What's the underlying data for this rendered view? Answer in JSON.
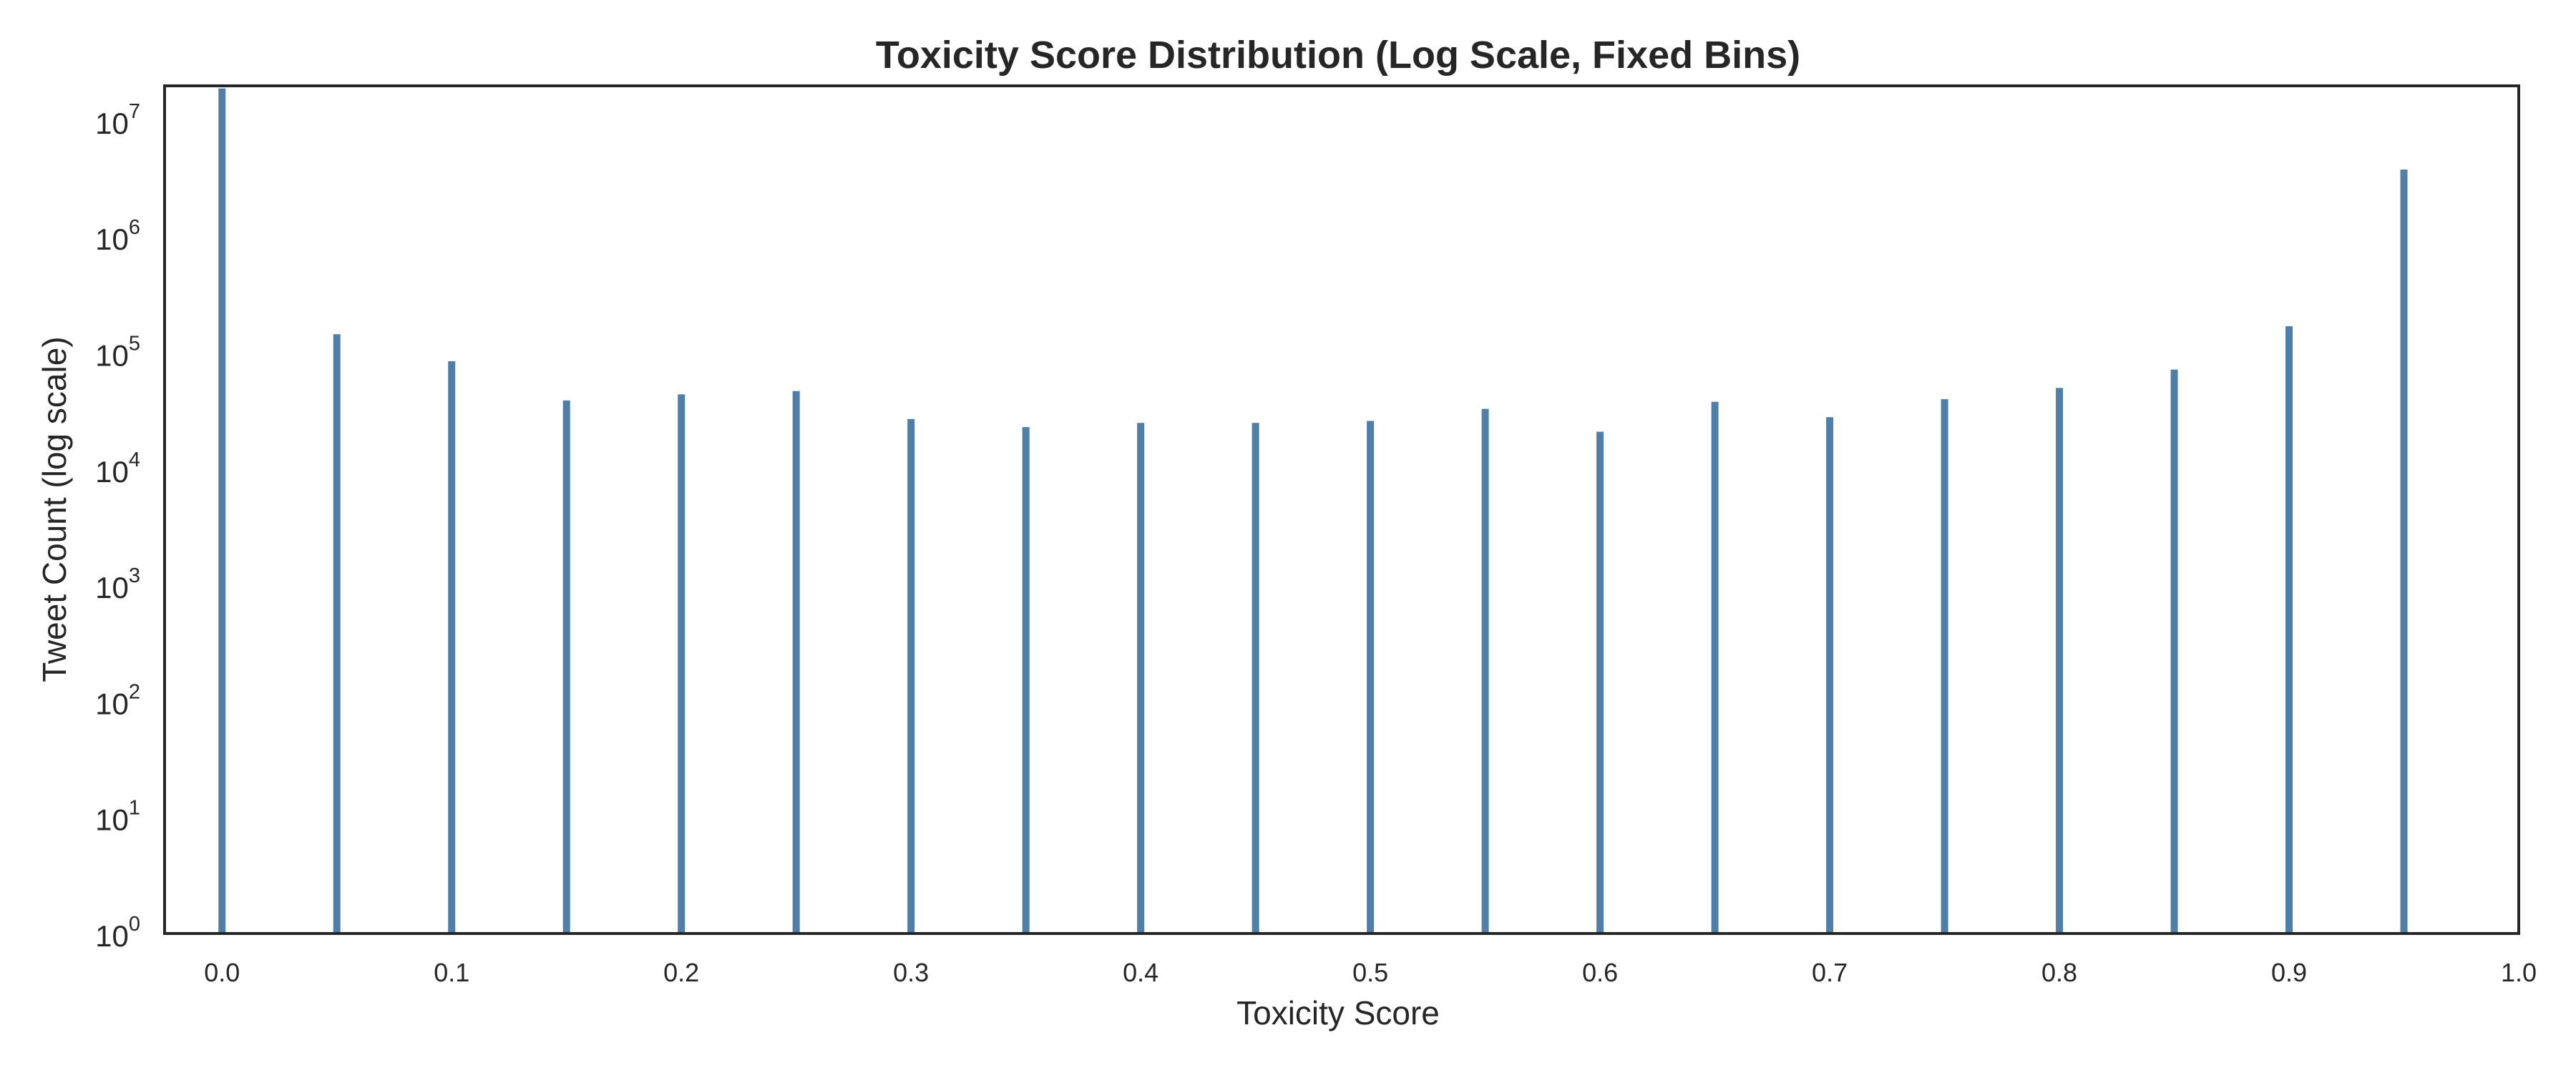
{
  "chart_data": {
    "type": "bar",
    "title": "Toxicity Score Distribution (Log Scale, Fixed Bins)",
    "xlabel": "Toxicity Score",
    "ylabel": "Tweet Count (log scale)",
    "y_scale": "log",
    "xlim": [
      -0.025,
      1.0
    ],
    "ylim": [
      1,
      20000000
    ],
    "grid": false,
    "x_ticks": [
      "0.0",
      "0.1",
      "0.2",
      "0.3",
      "0.4",
      "0.5",
      "0.6",
      "0.7",
      "0.8",
      "0.9",
      "1.0"
    ],
    "y_ticks": [
      {
        "base": "10",
        "exp": "0",
        "value": 1
      },
      {
        "base": "10",
        "exp": "1",
        "value": 10
      },
      {
        "base": "10",
        "exp": "2",
        "value": 100
      },
      {
        "base": "10",
        "exp": "3",
        "value": 1000
      },
      {
        "base": "10",
        "exp": "4",
        "value": 10000
      },
      {
        "base": "10",
        "exp": "5",
        "value": 100000
      },
      {
        "base": "10",
        "exp": "6",
        "value": 1000000
      },
      {
        "base": "10",
        "exp": "7",
        "value": 10000000
      }
    ],
    "bar_color": "#4f7fa8",
    "x": [
      0.0,
      0.05,
      0.1,
      0.15,
      0.2,
      0.25,
      0.3,
      0.35,
      0.4,
      0.45,
      0.5,
      0.55,
      0.6,
      0.65,
      0.7,
      0.75,
      0.8,
      0.85,
      0.9,
      0.95
    ],
    "values": [
      19000000,
      145000,
      85000,
      39000,
      44000,
      47000,
      27000,
      23000,
      25000,
      25000,
      26000,
      33000,
      21000,
      38000,
      28000,
      40000,
      50000,
      72000,
      170000,
      3800000
    ]
  }
}
